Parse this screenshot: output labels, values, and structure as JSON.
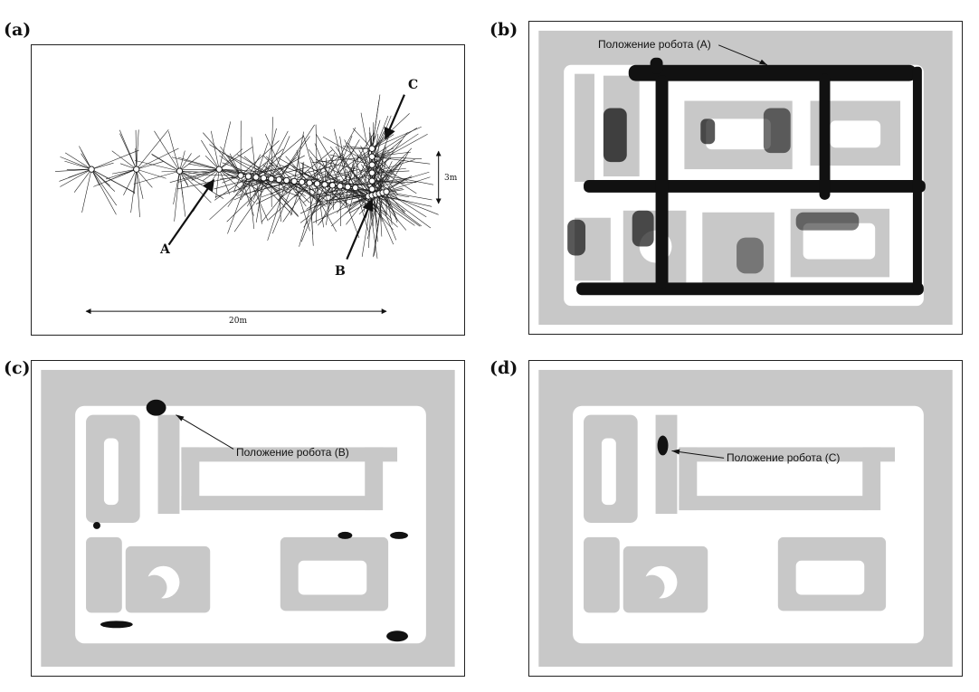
{
  "panels": {
    "a": {
      "label": "(a)",
      "point_a": "A",
      "point_b": "B",
      "point_c": "C",
      "dim_width": "20m",
      "dim_height": "3m"
    },
    "b": {
      "label": "(b)",
      "annotation": "Положение робота (А)"
    },
    "c": {
      "label": "(c)",
      "annotation": "Положение робота (В)"
    },
    "d": {
      "label": "(d)",
      "annotation": "Положение робота (С)"
    }
  },
  "colors": {
    "map_gray": "#c8c8c8",
    "free_space": "#ffffff",
    "ink": "#111111"
  }
}
